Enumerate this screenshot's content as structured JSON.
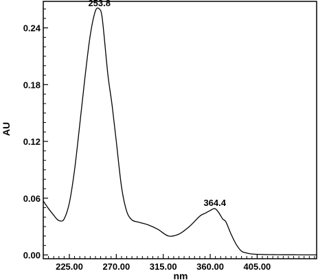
{
  "chart_data": {
    "type": "line",
    "title": "",
    "xlabel": "nm",
    "ylabel": "AU",
    "xlim": [
      200,
      462
    ],
    "ylim": [
      -0.004,
      0.268
    ],
    "x_ticks": [
      225,
      270,
      315,
      360,
      405
    ],
    "x_tick_labels": [
      "225.00",
      "270.00",
      "315.00",
      "360.00",
      "405.00"
    ],
    "y_ticks": [
      0.0,
      0.06,
      0.12,
      0.18,
      0.24
    ],
    "y_tick_labels": [
      "0.00",
      "0.06",
      "0.12",
      "0.18",
      "0.24"
    ],
    "grid": false,
    "legend": "none",
    "line_color": "#000000",
    "series": [
      {
        "x": [
          200,
          205,
          210,
          213,
          216,
          220,
          225,
          230,
          235,
          240,
          245,
          250,
          253.8,
          256,
          258,
          262,
          266,
          270,
          275,
          280,
          285,
          290,
          300,
          310,
          320,
          330,
          340,
          350,
          355,
          360,
          364.4,
          368,
          372,
          375,
          380,
          385,
          390,
          395,
          400,
          410,
          420,
          430,
          440,
          450,
          462
        ],
        "y": [
          0.057,
          0.049,
          0.042,
          0.038,
          0.036,
          0.038,
          0.055,
          0.09,
          0.138,
          0.188,
          0.232,
          0.258,
          0.26,
          0.254,
          0.235,
          0.19,
          0.158,
          0.12,
          0.072,
          0.046,
          0.037,
          0.035,
          0.032,
          0.027,
          0.02,
          0.022,
          0.03,
          0.041,
          0.044,
          0.047,
          0.049,
          0.045,
          0.038,
          0.035,
          0.022,
          0.011,
          0.004,
          0.002,
          0.001,
          0.0005,
          0.0003,
          0.0002,
          0.0002,
          0.0001,
          0.0001
        ]
      }
    ],
    "annotations": [
      {
        "text": "253.8",
        "x": 253.8,
        "y": 0.26
      },
      {
        "text": "364.4",
        "x": 364.4,
        "y": 0.049
      }
    ]
  }
}
